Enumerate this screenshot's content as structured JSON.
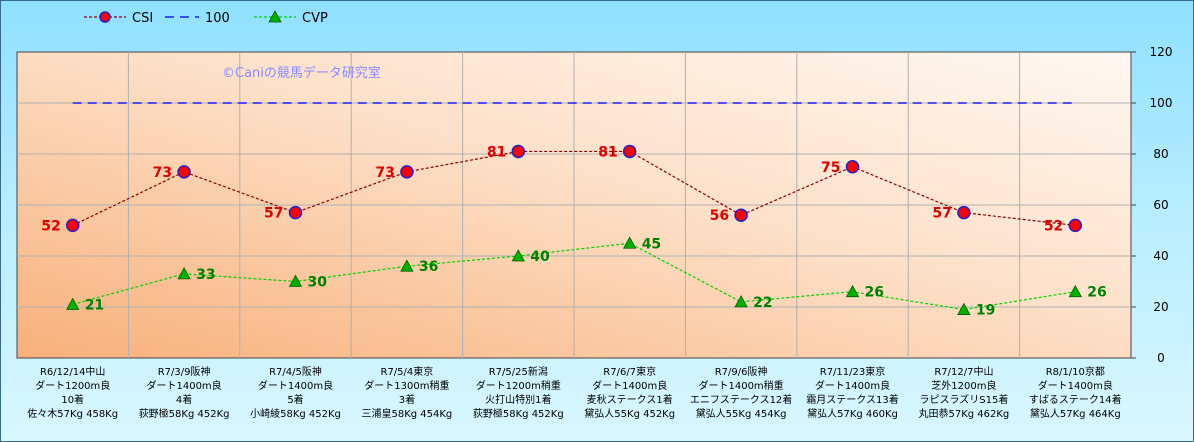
{
  "watermark": "©Caniの競馬データ研究室",
  "chart_data": {
    "type": "line",
    "ylim": [
      0,
      120
    ],
    "yticks": [
      0,
      20,
      40,
      60,
      80,
      100,
      120
    ],
    "grid": true,
    "legend_position": "top-left",
    "categories": [
      [
        "R6/12/14中山",
        "ダート1200m良",
        "10着",
        "佐々木57Kg 458Kg"
      ],
      [
        "R7/3/9阪神",
        "ダート1400m良",
        "4着",
        "荻野極58Kg 452Kg"
      ],
      [
        "R7/4/5阪神",
        "ダート1400m良",
        "5着",
        "小崎綾58Kg 452Kg"
      ],
      [
        "R7/5/4東京",
        "ダート1300m稍重",
        "3着",
        "三浦皇58Kg 454Kg"
      ],
      [
        "R7/5/25新潟",
        "ダート1200m稍重",
        "火打山特別1着",
        "荻野極58Kg 452Kg"
      ],
      [
        "R7/6/7東京",
        "ダート1400m良",
        "麦秋ステークス1着",
        "黛弘人55Kg 452Kg"
      ],
      [
        "R7/9/6阪神",
        "ダート1400m稍重",
        "エニフステークス12着",
        "黛弘人55Kg 454Kg"
      ],
      [
        "R7/11/23東京",
        "ダート1400m良",
        "霜月ステークス13着",
        "黛弘人57Kg 460Kg"
      ],
      [
        "R7/12/7中山",
        "芝外1200m良",
        "ラピスラズリS15着",
        "丸田恭57Kg 462Kg"
      ],
      [
        "R8/1/10京都",
        "ダート1400m良",
        "すばるステーク14着",
        "黛弘人57Kg 464Kg"
      ]
    ],
    "series": [
      {
        "name": "CSI",
        "values": [
          52,
          73,
          57,
          73,
          81,
          81,
          56,
          75,
          57,
          52
        ],
        "color": "#8b0000",
        "marker_fill": "#ff0000",
        "marker_edge": "#2222cc"
      },
      {
        "name": "100",
        "values": [
          100,
          100,
          100,
          100,
          100,
          100,
          100,
          100,
          100,
          100
        ],
        "color": "#1a1aff"
      },
      {
        "name": "CVP",
        "values": [
          21,
          33,
          30,
          36,
          40,
          45,
          22,
          26,
          19,
          26
        ],
        "color": "#00d000",
        "marker_fill": "#00b000"
      }
    ]
  }
}
